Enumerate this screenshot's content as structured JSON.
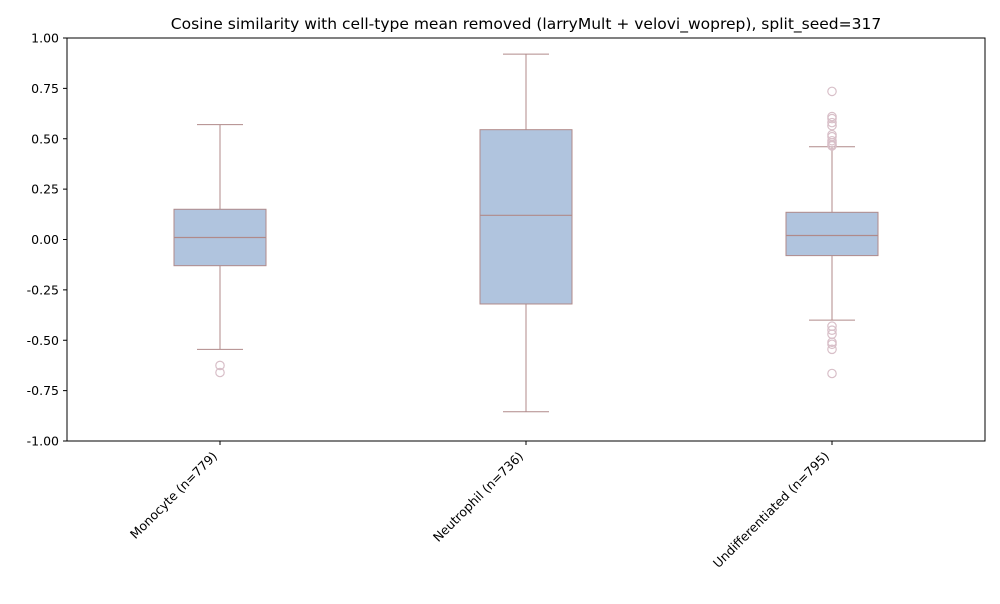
{
  "chart_data": {
    "type": "box",
    "title": "Cosine similarity with cell-type mean removed (larryMult + velovi_woprep), split_seed=317",
    "xlabel": "",
    "ylabel": "",
    "ylim": [
      -1.0,
      1.0
    ],
    "yticks": [
      "-1.00",
      "-0.75",
      "-0.50",
      "-0.25",
      "0.00",
      "0.25",
      "0.50",
      "0.75",
      "1.00"
    ],
    "ytick_values": [
      -1.0,
      -0.75,
      -0.5,
      -0.25,
      0.0,
      0.25,
      0.5,
      0.75,
      1.0
    ],
    "grid": false,
    "colors": {
      "box_fill": "#b0c4de",
      "box_edge": "#b08a8a",
      "outlier": "#d8bfc8",
      "axis": "#000000"
    },
    "categories": [
      "Monocyte (n=779)",
      "Neutrophil (n=736)",
      "Undifferentiated (n=795)"
    ],
    "boxes": [
      {
        "category": "Monocyte (n=779)",
        "whisker_low": -0.545,
        "q1": -0.13,
        "median": 0.01,
        "q3": 0.15,
        "whisker_high": 0.57,
        "outliers": [
          -0.625,
          -0.66
        ]
      },
      {
        "category": "Neutrophil (n=736)",
        "whisker_low": -0.855,
        "q1": -0.32,
        "median": 0.12,
        "q3": 0.545,
        "whisker_high": 0.92,
        "outliers": []
      },
      {
        "category": "Undifferentiated (n=795)",
        "whisker_low": -0.4,
        "q1": -0.08,
        "median": 0.02,
        "q3": 0.135,
        "whisker_high": 0.46,
        "outliers": [
          0.735,
          0.61,
          0.6,
          0.58,
          0.565,
          0.52,
          0.51,
          0.49,
          0.48,
          0.47,
          0.465,
          -0.43,
          -0.45,
          -0.47,
          -0.51,
          -0.52,
          -0.545,
          -0.665
        ]
      }
    ]
  }
}
